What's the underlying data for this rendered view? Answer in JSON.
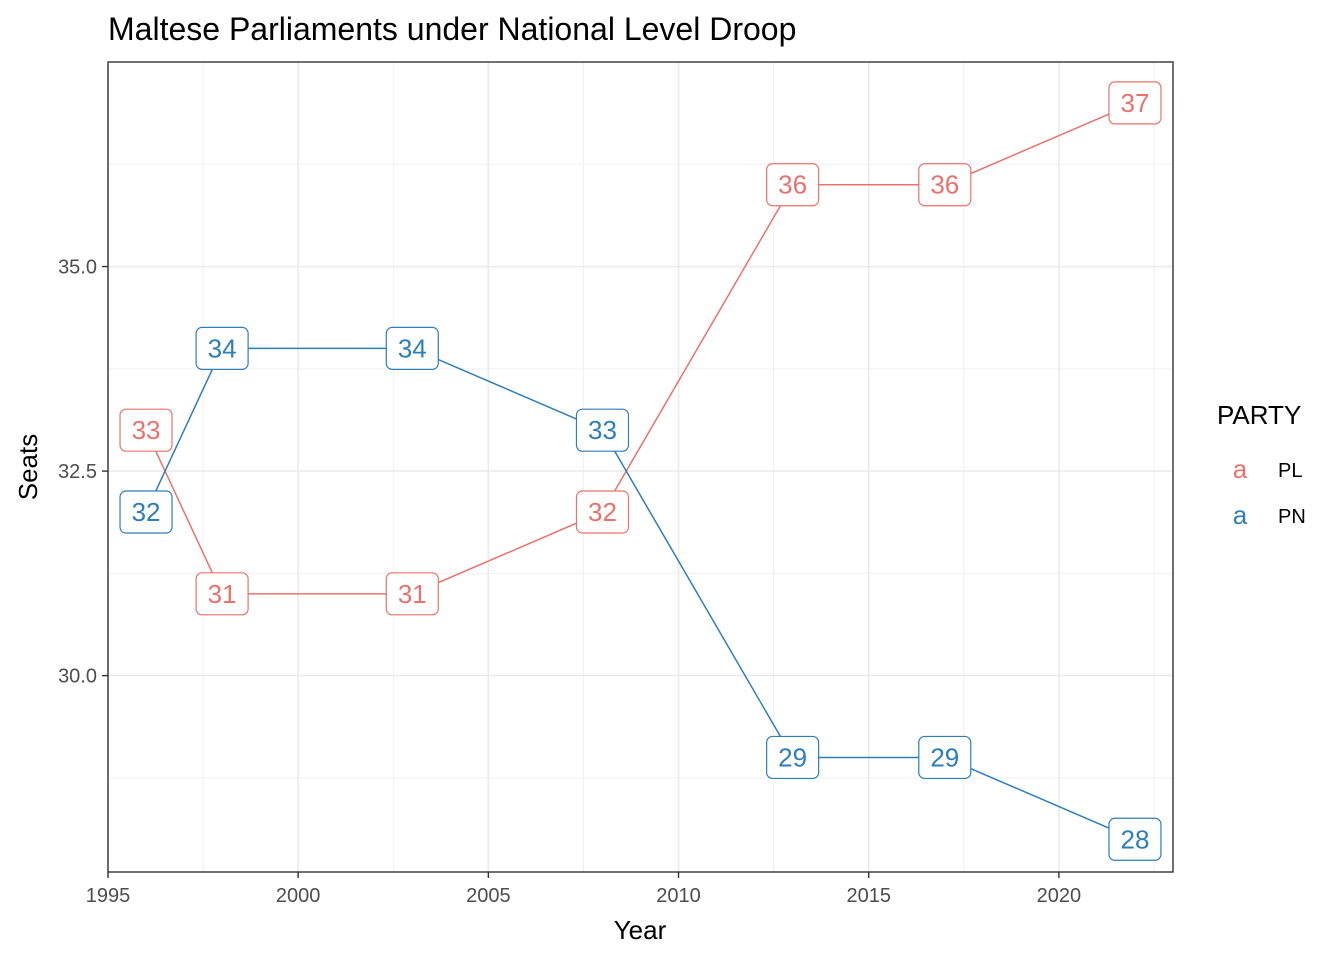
{
  "chart_data": {
    "type": "line",
    "title": "Maltese Parliaments under National Level Droop",
    "xlabel": "Year",
    "ylabel": "Seats",
    "xlim": [
      1995,
      2023
    ],
    "ylim": [
      27.6,
      37.5
    ],
    "x_ticks": [
      1995,
      2000,
      2005,
      2010,
      2015,
      2020
    ],
    "x_tick_labels": [
      "1995",
      "2000",
      "2005",
      "2010",
      "2015",
      "2020"
    ],
    "y_ticks": [
      30.0,
      32.5,
      35.0
    ],
    "y_tick_labels": [
      "30.0",
      "32.5",
      "35.0"
    ],
    "grid": true,
    "legend": {
      "title": "PARTY",
      "position": "right",
      "key_glyph": "a"
    },
    "x": [
      1996,
      1998,
      2003,
      2008,
      2013,
      2017,
      2022
    ],
    "series": [
      {
        "name": "PL",
        "color": "#E8736C",
        "values": [
          33,
          31,
          31,
          32,
          36,
          36,
          37
        ],
        "labels": [
          "33",
          "31",
          "31",
          "32",
          "36",
          "36",
          "37"
        ]
      },
      {
        "name": "PN",
        "color": "#2E7EB7",
        "values": [
          32,
          34,
          34,
          33,
          29,
          29,
          28
        ],
        "labels": [
          "32",
          "34",
          "34",
          "33",
          "29",
          "29",
          "28"
        ]
      }
    ]
  }
}
